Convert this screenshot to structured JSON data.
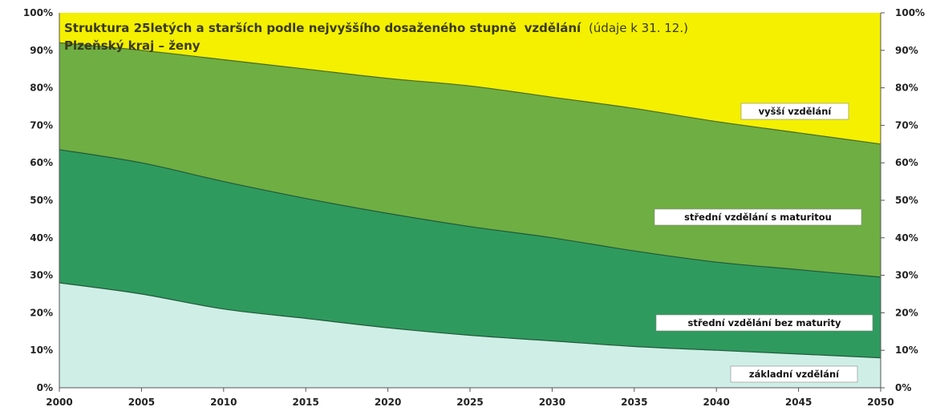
{
  "chart_data": {
    "type": "area",
    "stacked": true,
    "title": {
      "part1": "Struktura 25letých a starších podle nejvyššího dosaženého stupně",
      "part2": "vzdělání",
      "part3": "(údaje k 31. 12.)",
      "subtitle": "Plzeňský kraj – ženy"
    },
    "x": [
      2000,
      2005,
      2010,
      2015,
      2020,
      2025,
      2030,
      2035,
      2040,
      2045,
      2050
    ],
    "xlim": [
      2000,
      2050
    ],
    "ylim": [
      0,
      100
    ],
    "yticks": [
      "0%",
      "10%",
      "20%",
      "30%",
      "40%",
      "50%",
      "60%",
      "70%",
      "80%",
      "90%",
      "100%"
    ],
    "xticks": [
      "2000",
      "2005",
      "2010",
      "2015",
      "2020",
      "2025",
      "2030",
      "2035",
      "2040",
      "2045",
      "2050"
    ],
    "cumulative_boundaries": {
      "zakladni_top": [
        28,
        25,
        21,
        18.5,
        16,
        14,
        12.5,
        11,
        10,
        9,
        8
      ],
      "bez_maturity_top": [
        63.5,
        60,
        55,
        50.5,
        46.5,
        43,
        40,
        36.5,
        33.5,
        31.5,
        29.5
      ],
      "s_maturitou_top": [
        92,
        90,
        87.5,
        85,
        82.5,
        80.5,
        77.5,
        74.5,
        71,
        68,
        65
      ]
    },
    "series": [
      {
        "name": "základní vzdělání",
        "values": [
          28,
          25,
          21,
          18.5,
          16,
          14,
          12.5,
          11,
          10,
          9,
          8
        ],
        "color": "#cfeee6"
      },
      {
        "name": "střední vzdělání bez maturity",
        "values": [
          35.5,
          35,
          34,
          32,
          30.5,
          29,
          27.5,
          25.5,
          23.5,
          22.5,
          21.5
        ],
        "color": "#2f9a5e"
      },
      {
        "name": "střední vzdělání s maturitou",
        "values": [
          28.5,
          30,
          32.5,
          34.5,
          36,
          37.5,
          37.5,
          38,
          37.5,
          36.5,
          35.5
        ],
        "color": "#6fae42"
      },
      {
        "name": "vyšší vzdělání",
        "values": [
          8,
          10,
          12.5,
          15,
          17.5,
          19.5,
          22.5,
          25.5,
          29,
          32,
          35
        ],
        "color": "#f4f000"
      }
    ],
    "labels": {
      "vyssi": "vyšší vzdělání",
      "s_maturitou": "střední vzdělání s maturitou",
      "bez_maturity": "střední vzdělání bez maturity",
      "zakladni": "základní vzdělání"
    }
  }
}
